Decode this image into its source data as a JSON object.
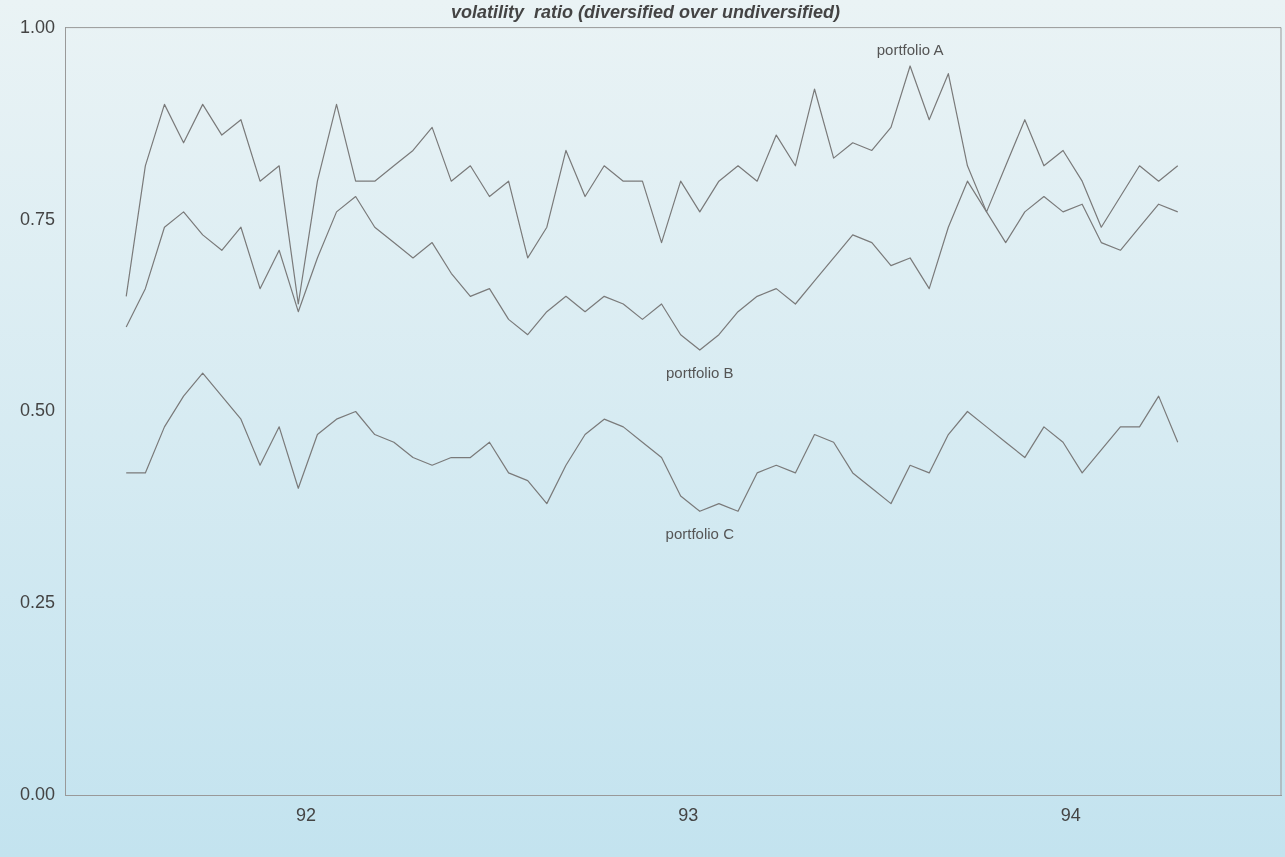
{
  "chart_data": {
    "type": "line",
    "title": "volatility  ratio (diversified over undiversified)",
    "x": [
      91.53,
      91.58,
      91.63,
      91.68,
      91.73,
      91.78,
      91.83,
      91.88,
      91.93,
      91.98,
      92.03,
      92.08,
      92.13,
      92.18,
      92.23,
      92.28,
      92.33,
      92.38,
      92.43,
      92.48,
      92.53,
      92.58,
      92.63,
      92.68,
      92.73,
      92.78,
      92.83,
      92.88,
      92.93,
      92.98,
      93.03,
      93.08,
      93.13,
      93.18,
      93.23,
      93.28,
      93.33,
      93.38,
      93.43,
      93.48,
      93.53,
      93.58,
      93.63,
      93.68,
      93.73,
      93.78,
      93.83,
      93.88,
      93.93,
      93.98,
      94.03,
      94.08,
      94.13,
      94.18,
      94.23,
      94.28
    ],
    "series": [
      {
        "name": "portfolio A",
        "color": "#7a7a7a",
        "values": [
          0.65,
          0.82,
          0.9,
          0.85,
          0.9,
          0.86,
          0.88,
          0.8,
          0.82,
          0.64,
          0.8,
          0.9,
          0.8,
          0.8,
          0.82,
          0.84,
          0.87,
          0.8,
          0.82,
          0.78,
          0.8,
          0.7,
          0.74,
          0.84,
          0.78,
          0.82,
          0.8,
          0.8,
          0.72,
          0.8,
          0.76,
          0.8,
          0.82,
          0.8,
          0.86,
          0.82,
          0.92,
          0.83,
          0.85,
          0.84,
          0.87,
          0.95,
          0.88,
          0.94,
          0.82,
          0.76,
          0.82,
          0.88,
          0.82,
          0.84,
          0.8,
          0.74,
          0.78,
          0.82,
          0.8,
          0.82
        ]
      },
      {
        "name": "portfolio B",
        "color": "#7a7a7a",
        "values": [
          0.61,
          0.66,
          0.74,
          0.76,
          0.73,
          0.71,
          0.74,
          0.66,
          0.71,
          0.63,
          0.7,
          0.76,
          0.78,
          0.74,
          0.72,
          0.7,
          0.72,
          0.68,
          0.65,
          0.66,
          0.62,
          0.6,
          0.63,
          0.65,
          0.63,
          0.65,
          0.64,
          0.62,
          0.64,
          0.6,
          0.58,
          0.6,
          0.63,
          0.65,
          0.66,
          0.64,
          0.67,
          0.7,
          0.73,
          0.72,
          0.69,
          0.7,
          0.66,
          0.74,
          0.8,
          0.76,
          0.72,
          0.76,
          0.78,
          0.76,
          0.77,
          0.72,
          0.71,
          0.74,
          0.77,
          0.76
        ]
      },
      {
        "name": "portfolio C",
        "color": "#7a7a7a",
        "values": [
          0.42,
          0.42,
          0.48,
          0.52,
          0.55,
          0.52,
          0.49,
          0.43,
          0.48,
          0.4,
          0.47,
          0.49,
          0.5,
          0.47,
          0.46,
          0.44,
          0.43,
          0.44,
          0.44,
          0.46,
          0.42,
          0.41,
          0.38,
          0.43,
          0.47,
          0.49,
          0.48,
          0.46,
          0.44,
          0.39,
          0.37,
          0.38,
          0.37,
          0.42,
          0.43,
          0.42,
          0.47,
          0.46,
          0.42,
          0.4,
          0.38,
          0.43,
          0.42,
          0.47,
          0.5,
          0.48,
          0.46,
          0.44,
          0.48,
          0.46,
          0.42,
          0.45,
          0.48,
          0.48,
          0.52,
          0.46
        ]
      }
    ],
    "xlim": [
      91.37,
      94.55
    ],
    "xticks": [
      92,
      93,
      94
    ],
    "ylim": [
      0,
      1
    ],
    "yticks": [
      {
        "value": 0,
        "label": "0.00"
      },
      {
        "value": 0.25,
        "label": "0.25"
      },
      {
        "value": 0.5,
        "label": "0.50"
      },
      {
        "value": 0.75,
        "label": "0.75"
      },
      {
        "value": 1,
        "label": "1.00"
      }
    ],
    "grid": false,
    "legend": false,
    "marker": "none",
    "line_style": "solid"
  }
}
